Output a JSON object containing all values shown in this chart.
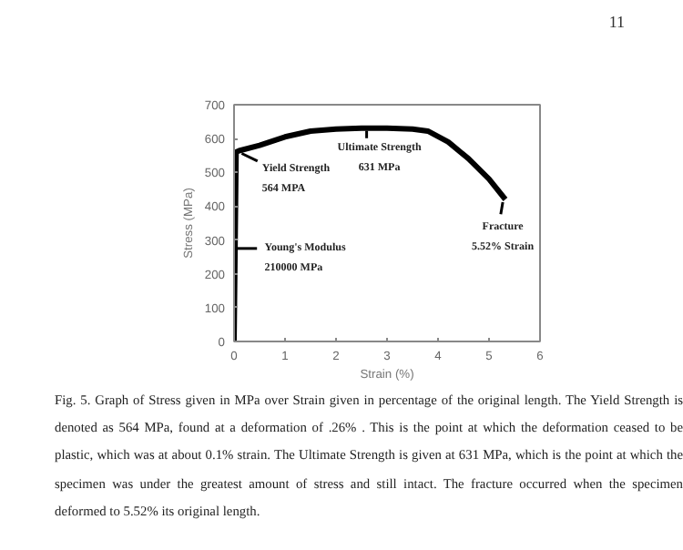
{
  "chart_data": {
    "type": "line",
    "xlabel": "Strain (%)",
    "ylabel": "Stress (MPa)",
    "x": [
      0,
      0.04,
      0.1,
      0.5,
      1.0,
      1.5,
      2.0,
      2.5,
      3.0,
      3.5,
      3.8,
      4.2,
      4.6,
      5.0,
      5.32
    ],
    "series": [
      {
        "color": "#000000",
        "values": [
          0,
          560,
          564,
          580,
          605,
          622,
          628,
          631,
          631,
          628,
          622,
          590,
          540,
          480,
          420
        ]
      }
    ],
    "xlim": [
      0,
      6
    ],
    "ylim": [
      0,
      700
    ],
    "xticks": [
      0,
      1,
      2,
      3,
      4,
      5,
      6
    ],
    "yticks": [
      0,
      100,
      200,
      300,
      400,
      500,
      600,
      700
    ],
    "grid": false,
    "marker": "none",
    "line_style": "solid",
    "annotations": [
      "11",
      "Fig. 5. Graph of Stress given in MPa over Strain given in percentage of the original length. The Yield Strength is denoted as 564 MPa, found at a deformation of .26% . This is the point at which the deformation ceased to be plastic, which was at about 0.1% strain. The Ultimate Strength is given at 631 MPa, which is the point at which the specimen was under the greatest amount of stress and still intact. The fracture occurred when the specimen deformed to 5.52% its original length.",
      {
        "text": "Ultimate Strength\n631 MPa",
        "x": 2.6,
        "y": 631
      },
      {
        "text": "Yield Strength\n564 MPA",
        "x": 0.1,
        "y": 564
      },
      {
        "text": "Young's Modulus\n210000 MPa",
        "x": 0.05,
        "y": 280
      },
      {
        "text": "Fracture\n5.52% Strain",
        "x": 5.32,
        "y": 420
      }
    ]
  }
}
